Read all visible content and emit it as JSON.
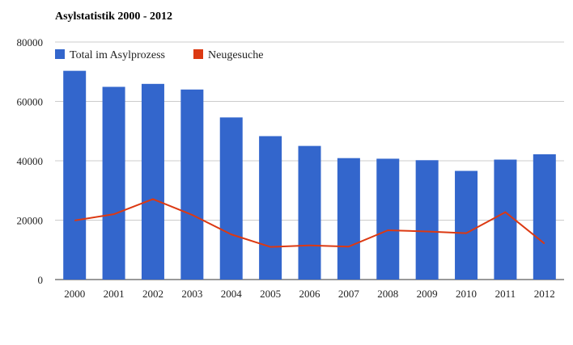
{
  "chart_data": {
    "type": "bar",
    "title": "Asylstatistik 2000 - 2012",
    "xlabel": "",
    "ylabel": "",
    "categories": [
      "2000",
      "2001",
      "2002",
      "2003",
      "2004",
      "2005",
      "2006",
      "2007",
      "2008",
      "2009",
      "2010",
      "2011",
      "2012"
    ],
    "ylim": [
      0,
      80000
    ],
    "yticks": [
      0,
      20000,
      40000,
      60000,
      80000
    ],
    "grid": true,
    "legend_position": "top-left",
    "series": [
      {
        "name": "Total im Asylprozess",
        "type": "bar",
        "color": "#3366cc",
        "values": [
          70300,
          64900,
          65900,
          64000,
          54600,
          48300,
          45000,
          40900,
          40700,
          40200,
          36600,
          40400,
          42200
        ]
      },
      {
        "name": "Neugesuche",
        "type": "line",
        "color": "#dc3912",
        "values": [
          19900,
          22000,
          27100,
          21800,
          15200,
          11000,
          11500,
          11100,
          16600,
          16200,
          15600,
          22700,
          12100
        ]
      }
    ]
  }
}
